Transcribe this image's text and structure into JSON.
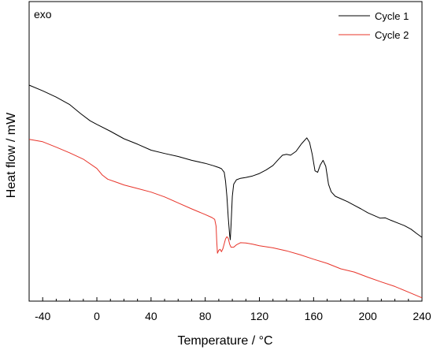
{
  "chart_data": {
    "type": "line",
    "title": "",
    "xlabel": "Temperature / °C",
    "ylabel": "Heat flow / mW",
    "annotation": "exo",
    "xlim": [
      -50,
      240
    ],
    "ylim": [
      0,
      100
    ],
    "y_units": "arbitrary",
    "xticks": [
      -40,
      0,
      40,
      80,
      120,
      160,
      200,
      240
    ],
    "y_ticklabels": false,
    "grid": false,
    "legend_position": "top-right",
    "series": [
      {
        "name": "Cycle 1",
        "color": "#000000",
        "points": [
          [
            -50,
            72.1
          ],
          [
            -40,
            70.2
          ],
          [
            -30,
            68.1
          ],
          [
            -20,
            65.6
          ],
          [
            -12,
            62.6
          ],
          [
            -5,
            60.2
          ],
          [
            0,
            59.0
          ],
          [
            10,
            56.7
          ],
          [
            20,
            54.2
          ],
          [
            30,
            52.4
          ],
          [
            40,
            50.4
          ],
          [
            50,
            49.3
          ],
          [
            60,
            48.3
          ],
          [
            70,
            47.0
          ],
          [
            80,
            46.0
          ],
          [
            86,
            45.2
          ],
          [
            88,
            44.9
          ],
          [
            90,
            44.6
          ],
          [
            92,
            44.2
          ],
          [
            94,
            43.0
          ],
          [
            95,
            40.0
          ],
          [
            96,
            35.0
          ],
          [
            97,
            28.0
          ],
          [
            98,
            22.0
          ],
          [
            98.5,
            20.5
          ],
          [
            99,
            25.0
          ],
          [
            100,
            35.0
          ],
          [
            101,
            39.0
          ],
          [
            103,
            40.5
          ],
          [
            106,
            41.0
          ],
          [
            110,
            41.3
          ],
          [
            115,
            41.8
          ],
          [
            120,
            42.6
          ],
          [
            125,
            43.8
          ],
          [
            130,
            45.3
          ],
          [
            134,
            47.3
          ],
          [
            137,
            48.7
          ],
          [
            140,
            49.0
          ],
          [
            143,
            48.7
          ],
          [
            147,
            50.0
          ],
          [
            151,
            52.5
          ],
          [
            155,
            54.5
          ],
          [
            157,
            53.0
          ],
          [
            159,
            49.0
          ],
          [
            161,
            43.5
          ],
          [
            163,
            43.0
          ],
          [
            165,
            45.5
          ],
          [
            167,
            47.0
          ],
          [
            169,
            45.0
          ],
          [
            171,
            39.0
          ],
          [
            173,
            36.5
          ],
          [
            176,
            35.0
          ],
          [
            180,
            34.2
          ],
          [
            185,
            33.2
          ],
          [
            190,
            32.0
          ],
          [
            195,
            30.8
          ],
          [
            200,
            29.5
          ],
          [
            205,
            28.5
          ],
          [
            209,
            27.7
          ],
          [
            213,
            27.8
          ],
          [
            217,
            27.0
          ],
          [
            222,
            26.1
          ],
          [
            227,
            25.2
          ],
          [
            232,
            24.0
          ],
          [
            236,
            22.6
          ],
          [
            240,
            21.3
          ]
        ]
      },
      {
        "name": "Cycle 2",
        "color": "#e8342a",
        "points": [
          [
            -50,
            54.0
          ],
          [
            -40,
            53.2
          ],
          [
            -30,
            51.4
          ],
          [
            -20,
            49.5
          ],
          [
            -10,
            47.4
          ],
          [
            0,
            44.3
          ],
          [
            4,
            42.1
          ],
          [
            8,
            40.7
          ],
          [
            15,
            39.6
          ],
          [
            20,
            38.8
          ],
          [
            30,
            37.6
          ],
          [
            40,
            36.4
          ],
          [
            50,
            34.8
          ],
          [
            60,
            32.8
          ],
          [
            70,
            30.8
          ],
          [
            80,
            28.9
          ],
          [
            85,
            27.9
          ],
          [
            87,
            27.3
          ],
          [
            88,
            25.0
          ],
          [
            88.5,
            20.0
          ],
          [
            89,
            16.0
          ],
          [
            90,
            17.0
          ],
          [
            91,
            17.3
          ],
          [
            92,
            16.5
          ],
          [
            93,
            17.5
          ],
          [
            95,
            20.8
          ],
          [
            96,
            21.5
          ],
          [
            97,
            21.0
          ],
          [
            98,
            19.0
          ],
          [
            99,
            18.0
          ],
          [
            101,
            18.0
          ],
          [
            103,
            18.8
          ],
          [
            106,
            19.5
          ],
          [
            110,
            19.4
          ],
          [
            115,
            19.0
          ],
          [
            120,
            18.5
          ],
          [
            130,
            17.8
          ],
          [
            140,
            16.8
          ],
          [
            150,
            15.5
          ],
          [
            160,
            14.0
          ],
          [
            170,
            12.6
          ],
          [
            180,
            10.8
          ],
          [
            190,
            9.7
          ],
          [
            200,
            8.0
          ],
          [
            210,
            6.4
          ],
          [
            220,
            4.9
          ],
          [
            230,
            3.0
          ],
          [
            240,
            1.1
          ]
        ]
      }
    ]
  }
}
